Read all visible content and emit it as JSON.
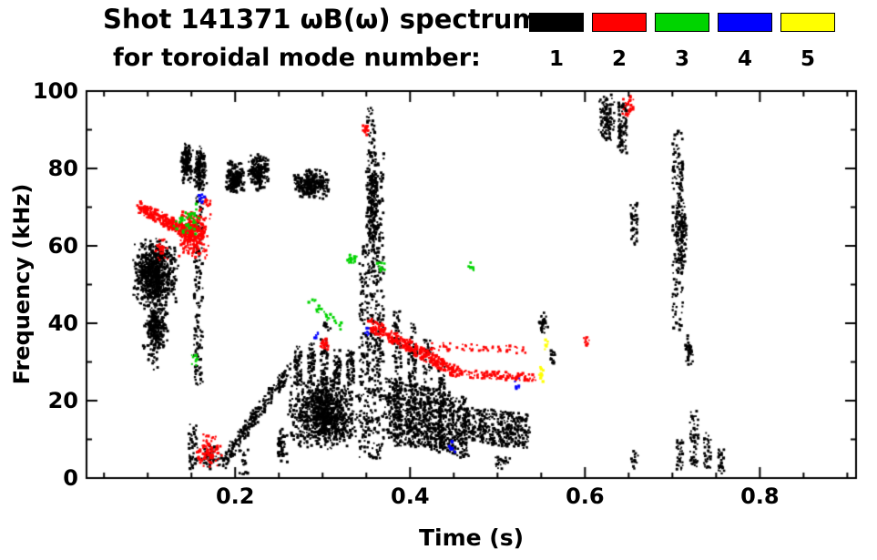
{
  "header": {
    "title": "Shot 141371 ωB(ω) spectrum",
    "subtitle": "for toroidal mode number:"
  },
  "legend": {
    "modes": [
      {
        "label": "1",
        "color": "#000000"
      },
      {
        "label": "2",
        "color": "#ff0000"
      },
      {
        "label": "3",
        "color": "#00d400"
      },
      {
        "label": "4",
        "color": "#0000ff"
      },
      {
        "label": "5",
        "color": "#ffff00"
      }
    ]
  },
  "chart_data": {
    "type": "scatter",
    "title": "Shot 141371 ωB(ω) spectrum for toroidal mode number: 1 2 3 4 5",
    "xlabel": "Time (s)",
    "ylabel": "Frequency (kHz)",
    "xlim": [
      0.03,
      0.91
    ],
    "ylim": [
      0,
      100
    ],
    "xticks": [
      0.2,
      0.4,
      0.6,
      0.8
    ],
    "xtick_labels": [
      "0.2",
      "0.4",
      "0.6",
      "0.8"
    ],
    "yticks": [
      0,
      20,
      40,
      60,
      80,
      100
    ],
    "ytick_labels": [
      "0",
      "20",
      "40",
      "60",
      "80",
      "100"
    ],
    "x_minor_step": 0.05,
    "y_minor_step": 10,
    "grid": false,
    "legend_position": "top",
    "series": [
      {
        "name": "n=1",
        "color": "#000000",
        "clusters": [
          {
            "kind": "blob",
            "t": [
              0.082,
              0.135
            ],
            "f": [
              44,
              62
            ],
            "n": 750
          },
          {
            "kind": "blob",
            "t": [
              0.094,
              0.126
            ],
            "f": [
              33,
              46
            ],
            "n": 220
          },
          {
            "kind": "streak",
            "t": [
              0.1,
              0.112
            ],
            "f": [
              28,
              48
            ],
            "n": 90
          },
          {
            "kind": "blob",
            "t": [
              0.138,
              0.152
            ],
            "f": [
              76,
              87
            ],
            "n": 170
          },
          {
            "kind": "blob",
            "t": [
              0.152,
              0.168
            ],
            "f": [
              74,
              86
            ],
            "n": 170
          },
          {
            "kind": "streak",
            "t": [
              0.153,
              0.163
            ],
            "f": [
              24,
              73
            ],
            "n": 140
          },
          {
            "kind": "streak",
            "t": [
              0.147,
              0.157
            ],
            "f": [
              2,
              14
            ],
            "n": 55
          },
          {
            "kind": "blob",
            "t": [
              0.16,
              0.185
            ],
            "f": [
              2,
              9
            ],
            "n": 50
          },
          {
            "kind": "blob",
            "t": [
              0.188,
              0.212
            ],
            "f": [
              73,
              82
            ],
            "n": 210
          },
          {
            "kind": "blob",
            "t": [
              0.214,
              0.24
            ],
            "f": [
              74,
              84
            ],
            "n": 210
          },
          {
            "kind": "chirp",
            "t": [
              0.185,
              0.262
            ],
            "f": [
              4,
              28
            ],
            "w": 4,
            "n": 240
          },
          {
            "kind": "streak",
            "t": [
              0.205,
              0.215
            ],
            "f": [
              1,
              8
            ],
            "n": 20
          },
          {
            "kind": "blob",
            "t": [
              0.246,
              0.26
            ],
            "f": [
              4,
              14
            ],
            "n": 60
          },
          {
            "kind": "blob",
            "t": [
              0.265,
              0.31
            ],
            "f": [
              72,
              80
            ],
            "n": 300
          },
          {
            "kind": "blob",
            "t": [
              0.258,
              0.345
            ],
            "f": [
              7,
              26
            ],
            "n": 1000
          },
          {
            "kind": "streak",
            "t": [
              0.268,
              0.276
            ],
            "f": [
              24,
              34
            ],
            "n": 60
          },
          {
            "kind": "streak",
            "t": [
              0.283,
              0.291
            ],
            "f": [
              24,
              35
            ],
            "n": 60
          },
          {
            "kind": "streak",
            "t": [
              0.298,
              0.306
            ],
            "f": [
              24,
              36
            ],
            "n": 60
          },
          {
            "kind": "streak",
            "t": [
              0.313,
              0.321
            ],
            "f": [
              24,
              34
            ],
            "n": 60
          },
          {
            "kind": "streak",
            "t": [
              0.328,
              0.336
            ],
            "f": [
              24,
              33
            ],
            "n": 60
          },
          {
            "kind": "blob",
            "t": [
              0.3,
              0.31
            ],
            "f": [
              38,
              41
            ],
            "n": 15
          },
          {
            "kind": "streak",
            "t": [
              0.342,
              0.35
            ],
            "f": [
              5,
              60
            ],
            "n": 110
          },
          {
            "kind": "streak",
            "t": [
              0.35,
              0.36
            ],
            "f": [
              5,
              96
            ],
            "n": 280
          },
          {
            "kind": "blob",
            "t": [
              0.352,
              0.363
            ],
            "f": [
              55,
              85
            ],
            "n": 160
          },
          {
            "kind": "streak",
            "t": [
              0.36,
              0.37
            ],
            "f": [
              5,
              84
            ],
            "n": 210
          },
          {
            "kind": "chirp",
            "t": [
              0.372,
              0.465
            ],
            "f": [
              18,
              13
            ],
            "w": 16,
            "n": 800
          },
          {
            "kind": "streak",
            "t": [
              0.38,
              0.39
            ],
            "f": [
              8,
              44
            ],
            "n": 130
          },
          {
            "kind": "streak",
            "t": [
              0.398,
              0.408
            ],
            "f": [
              8,
              40
            ],
            "n": 115
          },
          {
            "kind": "streak",
            "t": [
              0.415,
              0.425
            ],
            "f": [
              8,
              36
            ],
            "n": 100
          },
          {
            "kind": "streak",
            "t": [
              0.432,
              0.44
            ],
            "f": [
              8,
              30
            ],
            "n": 85
          },
          {
            "kind": "chirp",
            "t": [
              0.46,
              0.535
            ],
            "f": [
              14,
              12
            ],
            "w": 9,
            "n": 380
          },
          {
            "kind": "blob",
            "t": [
              0.495,
              0.515
            ],
            "f": [
              2,
              6
            ],
            "n": 25
          },
          {
            "kind": "blob",
            "t": [
              0.545,
              0.558
            ],
            "f": [
              37,
              43
            ],
            "n": 35
          },
          {
            "kind": "blob",
            "t": [
              0.558,
              0.566
            ],
            "f": [
              29,
              33
            ],
            "n": 16
          },
          {
            "kind": "blob",
            "t": [
              0.615,
              0.635
            ],
            "f": [
              86,
              100
            ],
            "n": 130
          },
          {
            "kind": "streak",
            "t": [
              0.638,
              0.648
            ],
            "f": [
              84,
              97
            ],
            "n": 85
          },
          {
            "kind": "streak",
            "t": [
              0.652,
              0.66
            ],
            "f": [
              60,
              71
            ],
            "n": 45
          },
          {
            "kind": "blob",
            "t": [
              0.652,
              0.662
            ],
            "f": [
              1,
              8
            ],
            "n": 15
          },
          {
            "kind": "streak",
            "t": [
              0.7,
              0.712
            ],
            "f": [
              38,
              90
            ],
            "n": 160
          },
          {
            "kind": "blob",
            "t": [
              0.703,
              0.717
            ],
            "f": [
              52,
              75
            ],
            "n": 130
          },
          {
            "kind": "blob",
            "t": [
              0.714,
              0.724
            ],
            "f": [
              28,
              38
            ],
            "n": 40
          },
          {
            "kind": "streak",
            "t": [
              0.705,
              0.712
            ],
            "f": [
              2,
              10
            ],
            "n": 30
          },
          {
            "kind": "streak",
            "t": [
              0.72,
              0.73
            ],
            "f": [
              2,
              18
            ],
            "n": 55
          },
          {
            "kind": "streak",
            "t": [
              0.736,
              0.744
            ],
            "f": [
              2,
              12
            ],
            "n": 38
          },
          {
            "kind": "streak",
            "t": [
              0.752,
              0.76
            ],
            "f": [
              1,
              8
            ],
            "n": 26
          }
        ]
      },
      {
        "name": "n=2",
        "color": "#ff0000",
        "clusters": [
          {
            "kind": "chirp",
            "t": [
              0.09,
              0.15
            ],
            "f": [
              70,
              63
            ],
            "w": 3,
            "n": 280
          },
          {
            "kind": "blob",
            "t": [
              0.133,
              0.172
            ],
            "f": [
              56,
              70
            ],
            "n": 280
          },
          {
            "kind": "blob",
            "t": [
              0.105,
              0.124
            ],
            "f": [
              56,
              62
            ],
            "n": 30
          },
          {
            "kind": "blob",
            "t": [
              0.162,
              0.172
            ],
            "f": [
              70,
              73
            ],
            "n": 14
          },
          {
            "kind": "blob",
            "t": [
              0.155,
              0.185
            ],
            "f": [
              2,
              12
            ],
            "n": 90
          },
          {
            "kind": "blob",
            "t": [
              0.296,
              0.309
            ],
            "f": [
              33,
              36
            ],
            "n": 30
          },
          {
            "kind": "blob",
            "t": [
              0.345,
              0.353
            ],
            "f": [
              88,
              92
            ],
            "n": 18
          },
          {
            "kind": "chirp",
            "t": [
              0.352,
              0.455
            ],
            "f": [
              40,
              27
            ],
            "w": 3,
            "n": 340
          },
          {
            "kind": "chirpdash",
            "t": [
              0.455,
              0.545
            ],
            "f": [
              27,
              26
            ],
            "w": 2,
            "n": 190
          },
          {
            "kind": "chirpdash",
            "t": [
              0.425,
              0.535
            ],
            "f": [
              34,
              33
            ],
            "w": 2,
            "n": 120
          },
          {
            "kind": "blob",
            "t": [
              0.598,
              0.606
            ],
            "f": [
              34,
              37
            ],
            "n": 12
          },
          {
            "kind": "blob",
            "t": [
              0.642,
              0.658
            ],
            "f": [
              93,
              99
            ],
            "n": 32
          }
        ]
      },
      {
        "name": "n=3",
        "color": "#00d400",
        "clusters": [
          {
            "kind": "blob",
            "t": [
              0.128,
              0.165
            ],
            "f": [
              62,
              71
            ],
            "n": 50
          },
          {
            "kind": "blob",
            "t": [
              0.148,
              0.158
            ],
            "f": [
              29,
              33
            ],
            "n": 10
          },
          {
            "kind": "chirpdash",
            "t": [
              0.285,
              0.325
            ],
            "f": [
              46,
              38
            ],
            "w": 2,
            "n": 60
          },
          {
            "kind": "blob",
            "t": [
              0.325,
              0.342
            ],
            "f": [
              55,
              58
            ],
            "n": 24
          },
          {
            "kind": "blob",
            "t": [
              0.36,
              0.372
            ],
            "f": [
              53,
              56
            ],
            "n": 14
          },
          {
            "kind": "blob",
            "t": [
              0.466,
              0.474
            ],
            "f": [
              53,
              56
            ],
            "n": 8
          }
        ]
      },
      {
        "name": "n=4",
        "color": "#0000ff",
        "clusters": [
          {
            "kind": "blob",
            "t": [
              0.157,
              0.166
            ],
            "f": [
              70,
              74
            ],
            "n": 12
          },
          {
            "kind": "blob",
            "t": [
              0.29,
              0.297
            ],
            "f": [
              36,
              39
            ],
            "n": 6
          },
          {
            "kind": "blob",
            "t": [
              0.348,
              0.356
            ],
            "f": [
              36,
              39
            ],
            "n": 8
          },
          {
            "kind": "blob",
            "t": [
              0.443,
              0.452
            ],
            "f": [
              6,
              10
            ],
            "n": 8
          },
          {
            "kind": "blob",
            "t": [
              0.518,
              0.53
            ],
            "f": [
              22,
              26
            ],
            "n": 8
          }
        ]
      },
      {
        "name": "n=5",
        "color": "#ffff00",
        "clusters": [
          {
            "kind": "blob",
            "t": [
              0.545,
              0.553
            ],
            "f": [
              24,
              29
            ],
            "n": 12
          },
          {
            "kind": "blob",
            "t": [
              0.552,
              0.559
            ],
            "f": [
              33,
              36
            ],
            "n": 7
          }
        ]
      }
    ]
  }
}
